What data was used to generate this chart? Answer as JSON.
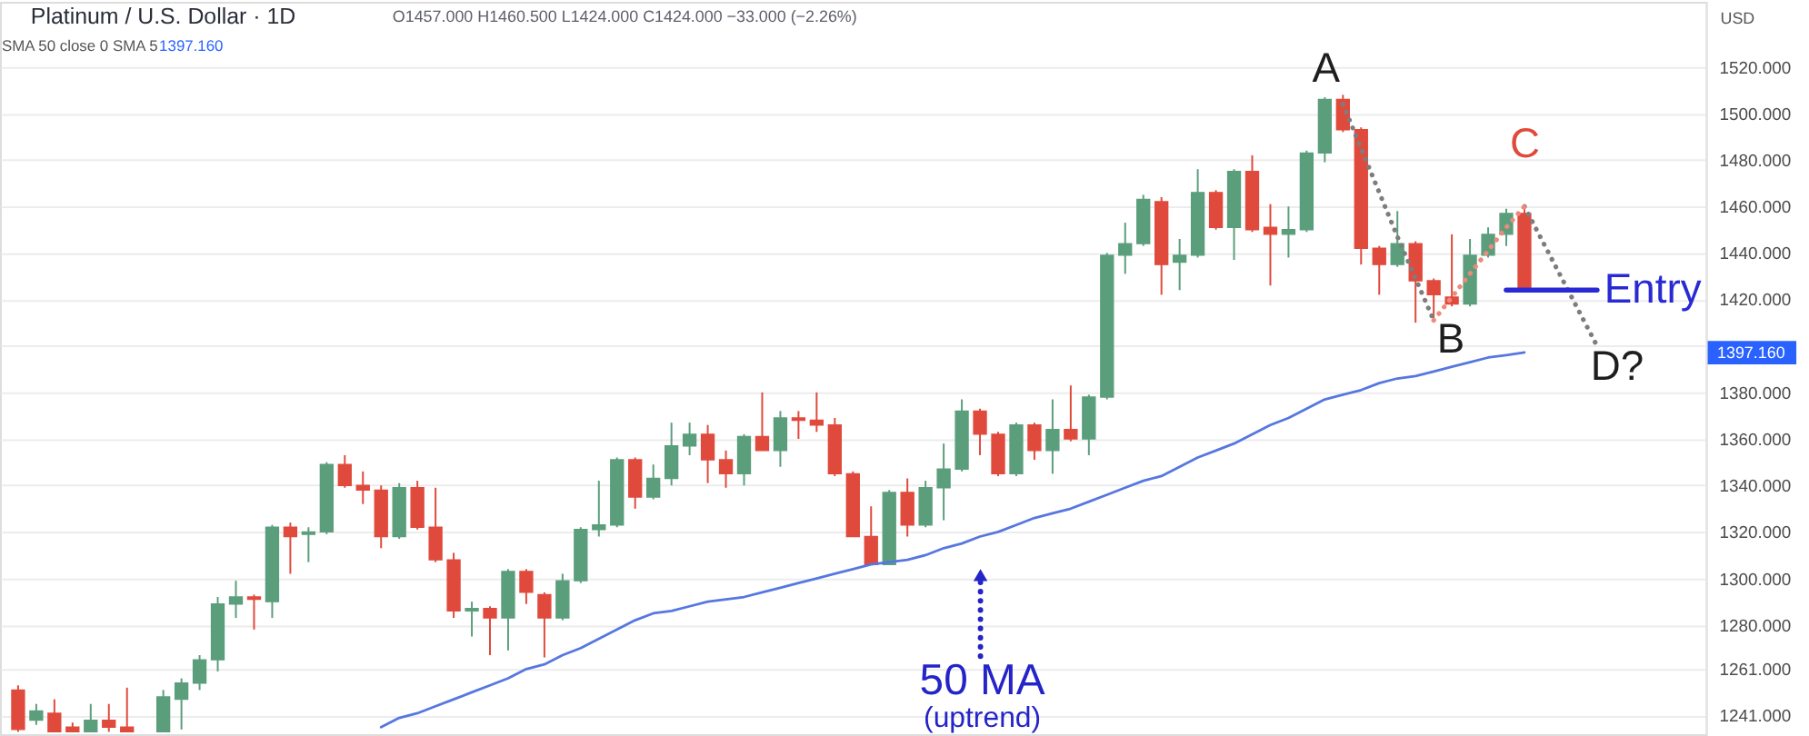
{
  "chart_data": {
    "type": "candlestick",
    "title": "Platinum / U.S. Dollar · 1D",
    "subtitle": "O1457.000 H1460.500 L1424.000 C1424.000 −33.000 (−2.26%)",
    "categories": [
      null,
      null,
      null,
      null,
      null,
      null,
      null,
      null,
      null,
      null,
      null,
      null,
      null,
      null,
      null,
      null,
      null,
      null,
      null,
      null,
      null,
      null,
      null,
      null,
      null,
      null,
      null,
      null,
      null,
      null,
      null,
      null,
      null,
      null,
      null,
      null,
      null,
      null,
      null,
      null,
      null,
      null,
      null,
      null,
      null,
      null,
      null,
      null,
      null,
      null,
      null,
      null,
      null,
      null,
      null,
      null,
      null,
      null,
      null,
      null,
      null,
      null,
      null,
      null,
      null,
      null,
      null,
      null,
      null,
      null,
      null,
      null,
      null,
      null,
      null,
      null,
      null,
      null,
      null,
      null,
      null,
      null,
      null,
      null,
      null,
      null,
      null,
      null,
      null,
      null,
      null,
      null,
      null
    ],
    "ohlc": [
      [
        1252,
        1254,
        1234,
        1235
      ],
      [
        1239,
        1246,
        1237,
        1243
      ],
      [
        1242,
        1248,
        1234,
        1234
      ],
      [
        1236,
        1238,
        1234,
        1234
      ],
      [
        1234,
        1246,
        1234,
        1239
      ],
      [
        1239,
        1246,
        1234,
        1236
      ],
      [
        1236,
        1253,
        1234,
        1234
      ],
      null,
      [
        1234,
        1252,
        1234,
        1249
      ],
      [
        1248,
        1257,
        1235,
        1255
      ],
      [
        1255,
        1267,
        1252,
        1265
      ],
      [
        1265,
        1292,
        1260,
        1289
      ],
      [
        1289,
        1299,
        1283,
        1292
      ],
      [
        1292,
        1293,
        1278,
        1291
      ],
      [
        1290,
        1323,
        1283,
        1322
      ],
      [
        1322,
        1324,
        1302,
        1318
      ],
      [
        1319,
        1322,
        1307,
        1320
      ],
      [
        1320,
        1350,
        1319,
        1349
      ],
      [
        1349,
        1353,
        1339,
        1340
      ],
      [
        1340,
        1346,
        1332,
        1338
      ],
      [
        1338,
        1340,
        1313,
        1318
      ],
      [
        1318,
        1341,
        1317,
        1339
      ],
      [
        1339,
        1342,
        1321,
        1322
      ],
      [
        1322,
        1339,
        1307,
        1308
      ],
      [
        1308,
        1311,
        1283,
        1286
      ],
      [
        1286,
        1290,
        1275,
        1287
      ],
      [
        1287,
        1288,
        1267,
        1283
      ],
      [
        1283,
        1304,
        1269,
        1303
      ],
      [
        1303,
        1304,
        1289,
        1294
      ],
      [
        1293,
        1294,
        1266,
        1283
      ],
      [
        1283,
        1302,
        1282,
        1299
      ],
      [
        1299,
        1322,
        1298,
        1321
      ],
      [
        1321,
        1342,
        1318,
        1323
      ],
      [
        1323,
        1352,
        1322,
        1351
      ],
      [
        1351,
        1352,
        1330,
        1335
      ],
      [
        1335,
        1349,
        1334,
        1343
      ],
      [
        1343,
        1367,
        1340,
        1357
      ],
      [
        1357,
        1367,
        1353,
        1362
      ],
      [
        1362,
        1366,
        1341,
        1351
      ],
      [
        1351,
        1355,
        1339,
        1345
      ],
      [
        1345,
        1362,
        1340,
        1361
      ],
      [
        1361,
        1380,
        1355,
        1355
      ],
      [
        1355,
        1372,
        1348,
        1369
      ],
      [
        1369,
        1372,
        1360,
        1368
      ],
      [
        1368,
        1380,
        1363,
        1366
      ],
      [
        1366,
        1369,
        1344,
        1345
      ],
      [
        1345,
        1346,
        1318,
        1318
      ],
      [
        1318,
        1331,
        1306,
        1306
      ],
      [
        1306,
        1338,
        1306,
        1337
      ],
      [
        1337,
        1343,
        1318,
        1323
      ],
      [
        1323,
        1342,
        1322,
        1339
      ],
      [
        1339,
        1358,
        1325,
        1347
      ],
      [
        1347,
        1377,
        1346,
        1372
      ],
      [
        1372,
        1373,
        1353,
        1362
      ],
      [
        1362,
        1363,
        1344,
        1345
      ],
      [
        1345,
        1367,
        1344,
        1366
      ],
      [
        1366,
        1367,
        1351,
        1355
      ],
      [
        1355,
        1377,
        1345,
        1364
      ],
      [
        1364,
        1383,
        1359,
        1360
      ],
      [
        1360,
        1379,
        1353,
        1378
      ],
      [
        1378,
        1440,
        1377,
        1439
      ],
      [
        1439,
        1453,
        1431,
        1444
      ],
      [
        1444,
        1465,
        1443,
        1463
      ],
      [
        1462,
        1464,
        1422,
        1435
      ],
      [
        1436,
        1446,
        1424,
        1439
      ],
      [
        1439,
        1476,
        1438,
        1466
      ],
      [
        1466,
        1467,
        1450,
        1451
      ],
      [
        1451,
        1476,
        1437,
        1475
      ],
      [
        1475,
        1482,
        1449,
        1450
      ],
      [
        1451,
        1461,
        1426,
        1448
      ],
      [
        1448,
        1460,
        1438,
        1450
      ],
      [
        1450,
        1484,
        1449,
        1483
      ],
      [
        1483,
        1507,
        1479,
        1506
      ],
      [
        1506,
        1508,
        1492,
        1493
      ],
      [
        1493,
        1494,
        1435,
        1442
      ],
      [
        1442,
        1443,
        1422,
        1435
      ],
      [
        1435,
        1458,
        1434,
        1444
      ],
      [
        1444,
        1445,
        1410,
        1428
      ],
      [
        1428,
        1429,
        1411,
        1422
      ],
      [
        1421,
        1448,
        1417,
        1418
      ],
      [
        1418,
        1446,
        1417,
        1439
      ],
      [
        1439,
        1451,
        1438,
        1448
      ],
      [
        1448,
        1459,
        1443,
        1457
      ],
      [
        1457,
        1460.5,
        1424,
        1424
      ],
      null,
      null,
      null,
      null,
      null,
      null,
      null,
      null,
      null
    ],
    "colors": [
      "#e04a3c",
      "#5b9e7c",
      "#e04a3c",
      "#e04a3c",
      "#5b9e7c",
      "#e04a3c",
      "#e04a3c",
      null,
      "#5b9e7c",
      "#5b9e7c",
      "#5b9e7c",
      "#5b9e7c",
      "#5b9e7c",
      "#e04a3c",
      "#5b9e7c",
      "#e04a3c",
      "#5b9e7c",
      "#5b9e7c",
      "#e04a3c",
      "#e04a3c",
      "#e04a3c",
      "#5b9e7c",
      "#e04a3c",
      "#e04a3c",
      "#e04a3c",
      "#5b9e7c",
      "#e04a3c",
      "#5b9e7c",
      "#e04a3c",
      "#e04a3c",
      "#5b9e7c",
      "#5b9e7c",
      "#5b9e7c",
      "#5b9e7c",
      "#e04a3c",
      "#5b9e7c",
      "#5b9e7c",
      "#5b9e7c",
      "#e04a3c",
      "#e04a3c",
      "#5b9e7c",
      "#e04a3c",
      "#5b9e7c",
      "#e04a3c",
      "#e04a3c",
      "#e04a3c",
      "#e04a3c",
      "#e04a3c",
      "#5b9e7c",
      "#e04a3c",
      "#5b9e7c",
      "#5b9e7c",
      "#5b9e7c",
      "#e04a3c",
      "#e04a3c",
      "#5b9e7c",
      "#e04a3c",
      "#5b9e7c",
      "#e04a3c",
      "#5b9e7c",
      "#5b9e7c",
      "#5b9e7c",
      "#5b9e7c",
      "#e04a3c",
      "#5b9e7c",
      "#5b9e7c",
      "#e04a3c",
      "#5b9e7c",
      "#e04a3c",
      "#e04a3c",
      "#5b9e7c",
      "#5b9e7c",
      "#5b9e7c",
      "#e04a3c",
      "#e04a3c",
      "#e04a3c",
      "#5b9e7c",
      "#e04a3c",
      "#e04a3c",
      "#e04a3c",
      "#5b9e7c",
      "#5b9e7c",
      "#5b9e7c",
      "#e04a3c",
      null,
      null,
      null,
      null,
      null,
      null,
      null,
      null,
      null
    ],
    "series": [
      {
        "type": "line",
        "color": "#5677e0",
        "line_style": "solid",
        "values": [
          null,
          null,
          null,
          null,
          null,
          null,
          null,
          null,
          null,
          null,
          null,
          null,
          null,
          null,
          null,
          null,
          null,
          null,
          null,
          null,
          1236,
          1240,
          1242,
          1245,
          1248,
          1251,
          1254,
          1257,
          1261,
          1263,
          1267,
          1270,
          1274,
          1278,
          1282,
          1285,
          1286,
          1288,
          1290,
          1291,
          1292,
          1294,
          1296,
          1298,
          1300,
          1302,
          1304,
          1306,
          1307,
          1308,
          1310,
          1313,
          1315,
          1318,
          1320,
          1323,
          1326,
          1328,
          1330,
          1333,
          1336,
          1339,
          1342,
          1344,
          1348,
          1352,
          1355,
          1358,
          1362,
          1366,
          1369,
          1373,
          1377,
          1379,
          1381,
          1384,
          1386,
          1387,
          1389,
          1391,
          1393,
          1395,
          1396,
          1397.16,
          null,
          null,
          null,
          null,
          null,
          null,
          null,
          null,
          null
        ]
      },
      {
        "type": "line",
        "color": "#7d7d7d",
        "line_style": "dotted",
        "values": [
          null,
          null,
          null,
          null,
          null,
          null,
          null,
          null,
          null,
          null,
          null,
          null,
          null,
          null,
          null,
          null,
          null,
          null,
          null,
          null,
          null,
          null,
          null,
          null,
          null,
          null,
          null,
          null,
          null,
          null,
          null,
          null,
          null,
          null,
          null,
          null,
          null,
          null,
          null,
          null,
          null,
          null,
          null,
          null,
          null,
          null,
          null,
          null,
          null,
          null,
          null,
          null,
          null,
          null,
          null,
          null,
          null,
          null,
          null,
          null,
          null,
          null,
          null,
          null,
          null,
          null,
          null,
          null,
          null,
          null,
          null,
          null,
          null,
          1504,
          1485,
          1466,
          1447,
          1429,
          1411,
          null,
          null,
          null,
          null,
          1460,
          1445,
          1430,
          1415,
          1400,
          null,
          null,
          null,
          null,
          null
        ]
      },
      {
        "type": "line",
        "color": "#ee8a7a",
        "line_style": "dotted",
        "values": [
          null,
          null,
          null,
          null,
          null,
          null,
          null,
          null,
          null,
          null,
          null,
          null,
          null,
          null,
          null,
          null,
          null,
          null,
          null,
          null,
          null,
          null,
          null,
          null,
          null,
          null,
          null,
          null,
          null,
          null,
          null,
          null,
          null,
          null,
          null,
          null,
          null,
          null,
          null,
          null,
          null,
          null,
          null,
          null,
          null,
          null,
          null,
          null,
          null,
          null,
          null,
          null,
          null,
          null,
          null,
          null,
          null,
          null,
          null,
          null,
          null,
          null,
          null,
          null,
          null,
          null,
          null,
          null,
          null,
          null,
          null,
          null,
          null,
          null,
          null,
          null,
          null,
          null,
          1411,
          1421,
          1431,
          1441,
          1451,
          1460,
          null,
          null,
          null,
          null,
          null,
          null,
          null,
          null,
          null
        ]
      },
      {
        "type": "line",
        "name": "Entry",
        "color": "#2a2ad4",
        "line_style": "solid",
        "values": [
          null,
          null,
          null,
          null,
          null,
          null,
          null,
          null,
          null,
          null,
          null,
          null,
          null,
          null,
          null,
          null,
          null,
          null,
          null,
          null,
          null,
          null,
          null,
          null,
          null,
          null,
          null,
          null,
          null,
          null,
          null,
          null,
          null,
          null,
          null,
          null,
          null,
          null,
          null,
          null,
          null,
          null,
          null,
          null,
          null,
          null,
          null,
          null,
          null,
          null,
          null,
          null,
          null,
          null,
          null,
          null,
          null,
          null,
          null,
          null,
          null,
          null,
          null,
          null,
          null,
          null,
          null,
          null,
          null,
          null,
          null,
          null,
          null,
          null,
          null,
          null,
          null,
          null,
          null,
          null,
          null,
          null,
          1424,
          1424,
          1424,
          1424,
          1424,
          1424,
          null,
          null,
          null,
          null,
          null
        ]
      }
    ],
    "ylim": [
      1233,
      1548
    ],
    "yticks": [
      {
        "value": 1520,
        "label": "1520.000"
      },
      {
        "value": 1500,
        "label": "1500.000"
      },
      {
        "value": 1480,
        "label": "1480.000"
      },
      {
        "value": 1460,
        "label": "1460.000"
      },
      {
        "value": 1440,
        "label": "1440.000"
      },
      {
        "value": 1420,
        "label": "1420.000"
      },
      {
        "value": 1400,
        "label": null
      },
      {
        "value": 1380,
        "label": "1380.000"
      },
      {
        "value": 1360,
        "label": "1360.000"
      },
      {
        "value": 1340,
        "label": "1340.000"
      },
      {
        "value": 1320,
        "label": "1320.000"
      },
      {
        "value": 1300,
        "label": "1300.000"
      },
      {
        "value": 1280,
        "label": "1280.000"
      },
      {
        "value": 1261,
        "label": "1261.000"
      },
      {
        "value": 1241,
        "label": "1241.000"
      }
    ],
    "grid": "y",
    "tick_labels": "y",
    "annotations": [
      "SMA 50 close 0 SMA 5",
      "1397.160",
      "1397.160",
      "USD",
      "A",
      "B",
      "C",
      "D?",
      "50 MA",
      "(uptrend)"
    ]
  }
}
